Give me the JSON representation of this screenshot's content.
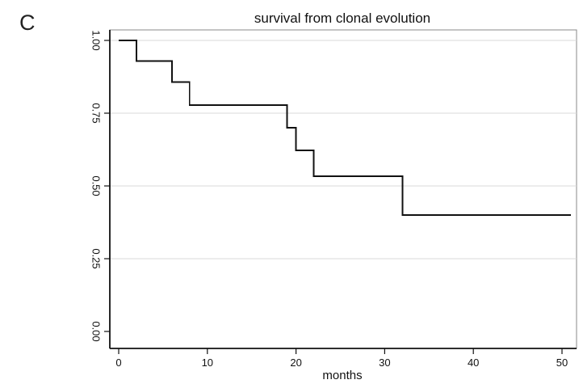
{
  "chart_data": {
    "type": "line",
    "panel_label": "C",
    "title": "survival from clonal evolution",
    "xlabel": "months",
    "ylabel": "",
    "xlim": [
      0,
      51
    ],
    "ylim": [
      0,
      1
    ],
    "x_ticks": [
      0,
      10,
      20,
      30,
      40,
      50
    ],
    "y_ticks": [
      0.0,
      0.25,
      0.5,
      0.75,
      1.0
    ],
    "x_tick_labels": [
      "0",
      "10",
      "20",
      "30",
      "40",
      "50"
    ],
    "y_tick_labels": [
      "0.00",
      "0.25",
      "0.50",
      "0.75",
      "1.00"
    ],
    "grid": "horizontal",
    "series": [
      {
        "style": "step",
        "x": [
          0,
          2,
          6,
          8,
          19,
          20,
          22,
          32,
          51
        ],
        "values": [
          1.0,
          0.929,
          0.857,
          0.778,
          0.7,
          0.622,
          0.533,
          0.4,
          0.4
        ]
      }
    ],
    "colors": {
      "line": "#111111",
      "grid": "#d9d9d9",
      "axis": "#111111",
      "frame": "#888888"
    }
  }
}
